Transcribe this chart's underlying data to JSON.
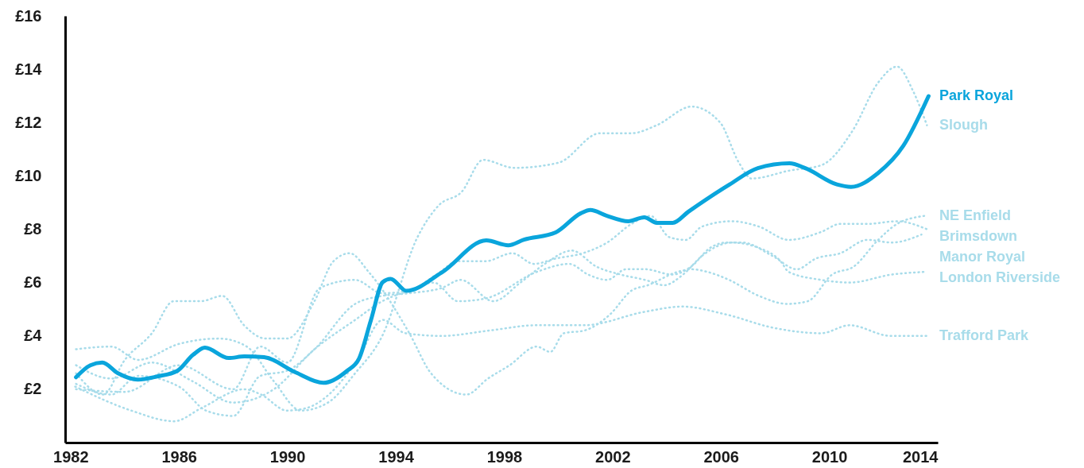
{
  "chart_data": {
    "type": "line",
    "xlim": [
      1981.8,
      2014
    ],
    "xticks": [
      1982,
      1986,
      1990,
      1994,
      1998,
      2002,
      2006,
      2010,
      2014
    ],
    "ylim": [
      0,
      16
    ],
    "yticks": [
      {
        "value": 0,
        "label": null
      },
      {
        "value": 2,
        "label": "£2"
      },
      {
        "value": 4,
        "label": "£4"
      },
      {
        "value": 6,
        "label": "£6"
      },
      {
        "value": 8,
        "label": "£8"
      },
      {
        "value": 10,
        "label": "£10"
      },
      {
        "value": 12,
        "label": "£12"
      },
      {
        "value": 14,
        "label": "£14"
      },
      {
        "value": 16,
        "label": "£16"
      }
    ],
    "grid": false,
    "legend": false,
    "series": [
      {
        "name": "Slough",
        "color": "#a8dcea",
        "line_style": "dotted",
        "x": [
          1982.2,
          1983.5,
          1984.5,
          1986,
          1987.5,
          1988.5,
          1989.5,
          1990.5,
          1991.5,
          1992.5,
          1993.5,
          1994.8,
          1995.59,
          1996.43,
          1997.22,
          1998.38,
          2000.02,
          2001.53,
          2002.7,
          2003.63,
          2004.92,
          2005.97,
          2006.66,
          2007.13,
          2008.53,
          2009.7,
          2010.86,
          2011.8,
          2012.5,
          2013.08,
          2013.6
        ],
        "values": [
          3.5,
          3.6,
          3.1,
          3.7,
          3.9,
          3.6,
          2.3,
          1.2,
          1.5,
          2.6,
          4.0,
          7.7,
          8.9,
          9.4,
          10.6,
          10.3,
          10.5,
          11.6,
          11.6,
          11.9,
          12.6,
          12.0,
          10.5,
          9.9,
          10.2,
          10.4,
          11.7,
          13.5,
          14.1,
          13.2,
          11.9
        ]
      },
      {
        "name": "NE Enfield",
        "color": "#a8dcea",
        "line_style": "dotted",
        "x": [
          1982.2,
          1983.2,
          1984.0,
          1985.0,
          1985.8,
          1986.8,
          1987.6,
          1988.4,
          1989.2,
          1990.0,
          1991.0,
          1991.7,
          1992.3,
          1993.0,
          1994.5,
          1995.3,
          1996.6,
          1997.4,
          1998.2,
          1999.2,
          1999.7,
          2000.2,
          2000.95,
          2001.9,
          2002.7,
          2003.3,
          2004.4,
          2004.9,
          2005.5,
          2006.3,
          2007.4,
          2008.45,
          2009.2,
          2010.1,
          2010.9,
          2011.8,
          2012.5,
          2013.5
        ],
        "values": [
          2.6,
          1.8,
          3.1,
          4.1,
          5.3,
          5.3,
          5.5,
          4.4,
          3.9,
          3.9,
          5.3,
          6.8,
          7.1,
          6.4,
          4.1,
          2.6,
          1.8,
          2.4,
          2.9,
          3.6,
          3.4,
          4.1,
          4.2,
          4.8,
          5.7,
          5.9,
          6.4,
          6.5,
          6.4,
          6.1,
          5.5,
          5.2,
          5.3,
          6.3,
          6.6,
          7.6,
          8.2,
          8.5
        ]
      },
      {
        "name": "Brimsdown",
        "color": "#a8dcea",
        "line_style": "dotted",
        "x": [
          1982.2,
          1984,
          1986,
          1988,
          1989,
          1990,
          1991.2,
          1992.5,
          1993.5,
          1994.5,
          1995.5,
          1996.3,
          1997.3,
          1998.3,
          1999.1,
          1999.9,
          2000.9,
          2001.8,
          2002.7,
          2003.4,
          2004.1,
          2004.7,
          2005.3,
          2006.4,
          2007.4,
          2008.5,
          2009.7,
          2010.4,
          2011.4,
          2012.5,
          2013.6
        ],
        "values": [
          2.0,
          1.9,
          2.9,
          2.0,
          3.6,
          3.0,
          5.8,
          6.1,
          5.6,
          5.7,
          6.3,
          6.8,
          6.8,
          7.1,
          6.7,
          6.9,
          7.1,
          7.5,
          8.2,
          8.5,
          7.7,
          7.6,
          8.1,
          8.3,
          8.1,
          7.6,
          7.9,
          8.2,
          8.2,
          8.3,
          8.0
        ]
      },
      {
        "name": "Manor Royal",
        "color": "#a8dcea",
        "line_style": "dotted",
        "x": [
          1982.2,
          1983.5,
          1985,
          1986.5,
          1988,
          1989.5,
          1991,
          1992.5,
          1993.5,
          1994.5,
          1995.4,
          1996.3,
          1997.3,
          1999.2,
          2000.4,
          2001.1,
          2001.8,
          2002.5,
          2003.2,
          2004.2,
          2004.9,
          2005.6,
          2006.2,
          2006.8,
          2007.9,
          2008.8,
          2009.5,
          2010.4,
          2011.4,
          2012.3,
          2013.4
        ],
        "values": [
          2.9,
          2.4,
          3.0,
          2.3,
          1.5,
          2.0,
          3.5,
          4.6,
          5.3,
          5.7,
          6.0,
          5.3,
          5.4,
          6.4,
          6.7,
          6.3,
          6.1,
          6.5,
          6.5,
          6.3,
          6.6,
          7.3,
          7.5,
          7.5,
          7.0,
          6.5,
          6.9,
          7.1,
          7.6,
          7.5,
          7.8
        ]
      },
      {
        "name": "London Riverside",
        "color": "#a8dcea",
        "line_style": "dotted",
        "x": [
          1982.2,
          1983.5,
          1984.5,
          1986,
          1987,
          1988,
          1989,
          1990,
          1991,
          1992.5,
          1993.5,
          1994.5,
          1995.7,
          1996.4,
          1997.6,
          1998.6,
          1999.5,
          2000.5,
          2001.4,
          2002.3,
          2003.2,
          2003.9,
          2004.6,
          2005.3,
          2006.4,
          2007.4,
          2008.2,
          2008.5,
          2009.7,
          2010.75,
          2012.3,
          2013.5
        ],
        "values": [
          2.2,
          1.8,
          2.5,
          2.1,
          1.2,
          1.0,
          2.5,
          2.7,
          3.5,
          5.2,
          5.5,
          5.6,
          5.8,
          6.1,
          5.3,
          6.0,
          6.7,
          7.2,
          6.6,
          6.3,
          6.1,
          5.9,
          6.3,
          7.0,
          7.5,
          7.3,
          6.8,
          6.4,
          6.1,
          6.0,
          6.3,
          6.4
        ]
      },
      {
        "name": "Trafford Park",
        "color": "#a8dcea",
        "line_style": "dotted",
        "x": [
          1982.17,
          1984.24,
          1985.82,
          1986.84,
          1988.41,
          1989.03,
          1989.99,
          1990.72,
          1991.53,
          1992.58,
          1993.52,
          1994.36,
          1995.7,
          1997.45,
          1999.2,
          2000.95,
          2003.17,
          2004.57,
          2006.2,
          2007.95,
          2009.7,
          2010.75,
          2012.26,
          2013.6
        ],
        "values": [
          2.1,
          1.2,
          0.8,
          1.3,
          2.0,
          1.8,
          1.2,
          1.3,
          1.8,
          3.1,
          4.6,
          4.1,
          4.0,
          4.2,
          4.4,
          4.4,
          4.9,
          5.1,
          4.8,
          4.3,
          4.1,
          4.4,
          4.0,
          4.0
        ]
      },
      {
        "name": "Park Royal",
        "color": "#0aa5dc",
        "line_style": "solid",
        "x": [
          1982.2,
          1982.73,
          1983.17,
          1983.75,
          1984.48,
          1985.2,
          1985.94,
          1986.52,
          1986.96,
          1987.83,
          1988.41,
          1989.14,
          1990.31,
          1991.33,
          1992.2,
          1992.64,
          1993.08,
          1993.52,
          1993.81,
          1994.39,
          1995.7,
          1997.34,
          1998.15,
          1998.73,
          1999.9,
          2000.83,
          2001.18,
          2001.77,
          2002.58,
          2003.17,
          2003.63,
          2004.22,
          2004.8,
          2006.32,
          2007.36,
          2008.53,
          2009.11,
          2010.28,
          2010.8,
          2011.8,
          2012.73,
          2013.66
        ],
        "values": [
          2.45,
          2.9,
          3.0,
          2.6,
          2.36,
          2.48,
          2.69,
          3.29,
          3.56,
          3.17,
          3.23,
          3.2,
          2.63,
          2.24,
          2.69,
          3.14,
          4.58,
          6.02,
          6.14,
          5.69,
          6.38,
          7.58,
          7.4,
          7.61,
          7.88,
          8.6,
          8.72,
          8.51,
          8.3,
          8.45,
          8.24,
          8.24,
          8.66,
          9.68,
          10.29,
          10.47,
          10.29,
          9.68,
          9.59,
          10.11,
          11.13,
          12.99
        ]
      }
    ]
  }
}
